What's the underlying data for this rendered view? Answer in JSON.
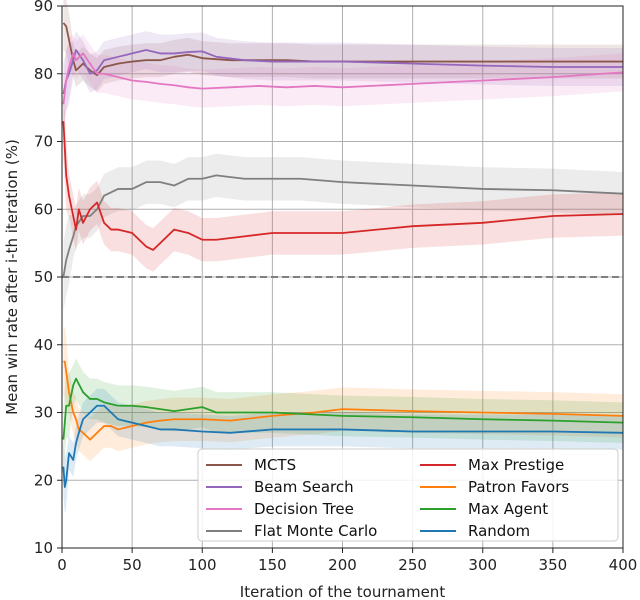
{
  "chart_data": {
    "type": "line",
    "title": "",
    "xlabel": "Iteration of the tournament",
    "ylabel": "Mean win rate after i-th iteration (%)",
    "xlim": [
      0,
      400
    ],
    "ylim": [
      10,
      90
    ],
    "xticks": [
      0,
      50,
      100,
      150,
      200,
      250,
      300,
      350,
      400
    ],
    "yticks": [
      10,
      20,
      30,
      40,
      50,
      60,
      70,
      80,
      90
    ],
    "grid": true,
    "reference_line": {
      "y": 50,
      "style": "dashed",
      "color": "#808080"
    },
    "legend_position": "lower-right",
    "series": [
      {
        "name": "MCTS",
        "color": "#8c564b",
        "x": [
          1,
          3,
          5,
          8,
          10,
          15,
          20,
          25,
          30,
          40,
          50,
          60,
          70,
          80,
          90,
          100,
          120,
          140,
          160,
          180,
          200,
          250,
          300,
          350,
          400
        ],
        "y": [
          87.5,
          87,
          85,
          82,
          80.5,
          81.5,
          80.5,
          79.8,
          81,
          81.5,
          81.8,
          82,
          82,
          82.5,
          82.8,
          82.3,
          82,
          82,
          82,
          81.8,
          81.8,
          81.8,
          81.8,
          81.8,
          81.8
        ],
        "band": 2.5
      },
      {
        "name": "Beam Search",
        "color": "#9467bd",
        "x": [
          1,
          3,
          5,
          8,
          10,
          15,
          20,
          25,
          30,
          40,
          50,
          60,
          70,
          80,
          90,
          100,
          110,
          130,
          150,
          200,
          250,
          300,
          350,
          400
        ],
        "y": [
          77,
          79,
          80,
          82,
          83.5,
          82,
          80,
          80.5,
          82,
          82.5,
          83,
          83.5,
          83,
          83,
          83.2,
          83.3,
          82.5,
          82,
          81.8,
          81.8,
          81.5,
          81.2,
          81,
          81
        ],
        "band": 2.8
      },
      {
        "name": "Decision Tree",
        "color": "#e377c2",
        "x": [
          1,
          3,
          5,
          8,
          10,
          15,
          20,
          25,
          30,
          40,
          50,
          60,
          70,
          80,
          90,
          100,
          120,
          140,
          160,
          180,
          200,
          250,
          300,
          350,
          400
        ],
        "y": [
          75.5,
          79,
          81,
          83,
          82,
          83,
          81.5,
          80,
          80,
          79.5,
          79,
          78.8,
          78.5,
          78.3,
          78,
          77.8,
          78,
          78.2,
          78,
          78.2,
          78,
          78.5,
          79,
          79.5,
          80.2
        ],
        "band": 2.8
      },
      {
        "name": "Flat Monte Carlo",
        "color": "#7f7f7f",
        "x": [
          1,
          3,
          5,
          8,
          10,
          15,
          20,
          25,
          30,
          35,
          40,
          50,
          60,
          70,
          80,
          90,
          100,
          110,
          130,
          150,
          170,
          200,
          250,
          300,
          350,
          400
        ],
        "y": [
          50,
          52.5,
          54,
          56,
          57.5,
          59,
          59,
          60,
          62,
          62.5,
          63,
          63,
          64,
          64,
          63.5,
          64.5,
          64.5,
          65,
          64.5,
          64.5,
          64.5,
          64,
          63.5,
          63,
          62.8,
          62.3
        ],
        "band": 3.2
      },
      {
        "name": "Max Prestige",
        "color": "#d62728",
        "x": [
          1,
          2,
          3,
          5,
          8,
          10,
          12,
          15,
          20,
          25,
          30,
          35,
          40,
          50,
          60,
          65,
          70,
          80,
          90,
          100,
          110,
          130,
          150,
          200,
          250,
          300,
          350,
          400
        ],
        "y": [
          73,
          69,
          65,
          62,
          59,
          57,
          60,
          58,
          60,
          61,
          58,
          57,
          57,
          56.5,
          54.5,
          54,
          55,
          57,
          56.5,
          55.5,
          55.5,
          56,
          56.5,
          56.5,
          57.5,
          58,
          59,
          59.3
        ],
        "band": 3.2
      },
      {
        "name": "Patron Favors",
        "color": "#ff7f0e",
        "x": [
          1,
          2,
          3,
          5,
          8,
          10,
          12,
          15,
          20,
          25,
          30,
          35,
          40,
          50,
          60,
          70,
          80,
          100,
          120,
          150,
          180,
          200,
          250,
          300,
          350,
          400
        ],
        "y": [
          37.5,
          37.5,
          36,
          33,
          30,
          29,
          27.5,
          27,
          26,
          27,
          28,
          28,
          27.5,
          28,
          28.5,
          28.8,
          29,
          29,
          28.8,
          29.5,
          30,
          30.5,
          30.2,
          30,
          29.8,
          29.5
        ],
        "band": 3.2
      },
      {
        "name": "Max Agent",
        "color": "#2ca02c",
        "x": [
          1,
          3,
          5,
          8,
          10,
          15,
          20,
          25,
          30,
          40,
          50,
          60,
          70,
          80,
          90,
          100,
          110,
          130,
          150,
          200,
          250,
          300,
          350,
          400
        ],
        "y": [
          26,
          31,
          31,
          34,
          35,
          33,
          32,
          32,
          31.5,
          31,
          31,
          30.8,
          30.5,
          30.2,
          30.5,
          30.8,
          30,
          30,
          30,
          29.5,
          29.3,
          29,
          28.8,
          28.5
        ],
        "band": 3.0
      },
      {
        "name": "Random",
        "color": "#1f77b4",
        "x": [
          1,
          2,
          3,
          5,
          8,
          10,
          12,
          15,
          20,
          25,
          30,
          35,
          40,
          50,
          60,
          70,
          80,
          100,
          120,
          150,
          200,
          250,
          300,
          350,
          400
        ],
        "y": [
          22,
          19,
          20,
          24,
          23,
          25.5,
          27,
          29,
          30,
          31,
          31,
          30,
          29,
          28.5,
          28,
          27.5,
          27.5,
          27.2,
          27,
          27.5,
          27.5,
          27.2,
          27.2,
          27.2,
          27
        ],
        "band": 2.5
      }
    ]
  }
}
